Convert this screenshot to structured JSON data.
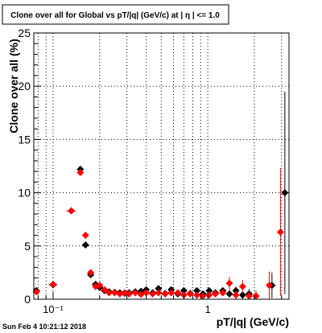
{
  "chart_data": {
    "type": "scatter",
    "title": "Clone  over all for Global vs pT/|q| (GeV/c) at |  η | <= 1.0",
    "xlabel": "pT/|q| (GeV/c)",
    "ylabel": "Clone  over all (%)",
    "footer": "Sun Feb  4 10:21:12 2018",
    "x_scale": "log",
    "xlim": [
      0.075,
      3.35
    ],
    "ylim": [
      0,
      25
    ],
    "grid": true,
    "y_ticks": [
      "0",
      "5",
      "10",
      "15",
      "20",
      "25"
    ],
    "x_ticks": [
      "10⁻¹",
      "1"
    ],
    "series": [
      {
        "color": "#000000",
        "marker": "diamond",
        "points": [
          {
            "x": 0.078,
            "y": 0.8,
            "xerr": 0.003,
            "yerr": 0.2
          },
          {
            "x": 0.1,
            "y": 1.35,
            "xerr": 0.006,
            "yerr": 0.25
          },
          {
            "x": 0.131,
            "y": 8.3,
            "xerr": 0.009,
            "yerr": 0.25
          },
          {
            "x": 0.15,
            "y": 12.2,
            "xerr": 0.003,
            "yerr": 0.25
          },
          {
            "x": 0.162,
            "y": 5.1,
            "xerr": 0.003,
            "yerr": 0.25
          },
          {
            "x": 0.175,
            "y": 2.3,
            "xerr": 0.003,
            "yerr": 0.2
          },
          {
            "x": 0.188,
            "y": 1.4,
            "xerr": 0.003,
            "yerr": 0.15
          },
          {
            "x": 0.2,
            "y": 1.1,
            "xerr": 0.003,
            "yerr": 0.15
          },
          {
            "x": 0.215,
            "y": 0.8,
            "xerr": 0.004,
            "yerr": 0.12
          },
          {
            "x": 0.23,
            "y": 0.7,
            "xerr": 0.004,
            "yerr": 0.12
          },
          {
            "x": 0.25,
            "y": 0.65,
            "xerr": 0.005,
            "yerr": 0.12
          },
          {
            "x": 0.27,
            "y": 0.6,
            "xerr": 0.005,
            "yerr": 0.12
          },
          {
            "x": 0.29,
            "y": 0.55,
            "xerr": 0.005,
            "yerr": 0.12
          },
          {
            "x": 0.31,
            "y": 0.6,
            "xerr": 0.006,
            "yerr": 0.12
          },
          {
            "x": 0.34,
            "y": 0.7,
            "xerr": 0.006,
            "yerr": 0.15
          },
          {
            "x": 0.37,
            "y": 0.75,
            "xerr": 0.007,
            "yerr": 0.15
          },
          {
            "x": 0.4,
            "y": 0.9,
            "xerr": 0.008,
            "yerr": 0.15
          },
          {
            "x": 0.44,
            "y": 0.6,
            "xerr": 0.009,
            "yerr": 0.15
          },
          {
            "x": 0.48,
            "y": 1.0,
            "xerr": 0.01,
            "yerr": 0.2
          },
          {
            "x": 0.53,
            "y": 0.55,
            "xerr": 0.01,
            "yerr": 0.2
          },
          {
            "x": 0.58,
            "y": 0.9,
            "xerr": 0.012,
            "yerr": 0.2
          },
          {
            "x": 0.64,
            "y": 0.5,
            "xerr": 0.013,
            "yerr": 0.2
          },
          {
            "x": 0.7,
            "y": 0.8,
            "xerr": 0.014,
            "yerr": 0.2
          },
          {
            "x": 0.77,
            "y": 0.55,
            "xerr": 0.015,
            "yerr": 0.2
          },
          {
            "x": 0.85,
            "y": 0.8,
            "xerr": 0.017,
            "yerr": 0.25
          },
          {
            "x": 0.93,
            "y": 0.5,
            "xerr": 0.02,
            "yerr": 0.25
          },
          {
            "x": 1.02,
            "y": 0.8,
            "xerr": 0.02,
            "yerr": 0.25
          },
          {
            "x": 1.12,
            "y": 0.6,
            "xerr": 0.025,
            "yerr": 0.3
          },
          {
            "x": 1.25,
            "y": 0.8,
            "xerr": 0.025,
            "yerr": 0.3
          },
          {
            "x": 1.38,
            "y": 0.5,
            "xerr": 0.03,
            "yerr": 0.35
          },
          {
            "x": 1.52,
            "y": 0.8,
            "xerr": 0.03,
            "yerr": 0.4
          },
          {
            "x": 1.68,
            "y": 0.4,
            "xerr": 0.035,
            "yerr": 0.4
          },
          {
            "x": 1.85,
            "y": 0.5,
            "xerr": 0.04,
            "yerr": 0.45
          },
          {
            "x": 2.05,
            "y": 0.3,
            "xerr": 0.045,
            "yerr": 0.5
          },
          {
            "x": 2.6,
            "y": 1.3,
            "xerr": 0.05,
            "yerr": 1.2
          },
          {
            "x": 3.15,
            "y": 10.0,
            "xerr": 0.05,
            "yerr": 9.5
          }
        ]
      },
      {
        "color": "#ff0000",
        "marker": "diamond",
        "points": [
          {
            "x": 0.078,
            "y": 0.7,
            "xerr": 0.003,
            "yerr": 0.2
          },
          {
            "x": 0.1,
            "y": 1.4,
            "xerr": 0.006,
            "yerr": 0.25
          },
          {
            "x": 0.131,
            "y": 8.3,
            "xerr": 0.009,
            "yerr": 0.25
          },
          {
            "x": 0.15,
            "y": 11.9,
            "xerr": 0.003,
            "yerr": 0.25
          },
          {
            "x": 0.162,
            "y": 6.0,
            "xerr": 0.003,
            "yerr": 0.25
          },
          {
            "x": 0.175,
            "y": 2.5,
            "xerr": 0.003,
            "yerr": 0.2
          },
          {
            "x": 0.188,
            "y": 1.2,
            "xerr": 0.003,
            "yerr": 0.15
          },
          {
            "x": 0.2,
            "y": 1.3,
            "xerr": 0.003,
            "yerr": 0.15
          },
          {
            "x": 0.215,
            "y": 0.9,
            "xerr": 0.004,
            "yerr": 0.12
          },
          {
            "x": 0.23,
            "y": 0.6,
            "xerr": 0.004,
            "yerr": 0.12
          },
          {
            "x": 0.25,
            "y": 0.6,
            "xerr": 0.005,
            "yerr": 0.12
          },
          {
            "x": 0.27,
            "y": 0.5,
            "xerr": 0.005,
            "yerr": 0.12
          },
          {
            "x": 0.29,
            "y": 0.6,
            "xerr": 0.005,
            "yerr": 0.12
          },
          {
            "x": 0.31,
            "y": 0.5,
            "xerr": 0.006,
            "yerr": 0.12
          },
          {
            "x": 0.34,
            "y": 0.6,
            "xerr": 0.006,
            "yerr": 0.15
          },
          {
            "x": 0.37,
            "y": 0.45,
            "xerr": 0.007,
            "yerr": 0.15
          },
          {
            "x": 0.4,
            "y": 0.6,
            "xerr": 0.008,
            "yerr": 0.15
          },
          {
            "x": 0.44,
            "y": 0.5,
            "xerr": 0.009,
            "yerr": 0.15
          },
          {
            "x": 0.48,
            "y": 0.6,
            "xerr": 0.01,
            "yerr": 0.2
          },
          {
            "x": 0.53,
            "y": 0.5,
            "xerr": 0.01,
            "yerr": 0.2
          },
          {
            "x": 0.58,
            "y": 0.6,
            "xerr": 0.012,
            "yerr": 0.2
          },
          {
            "x": 0.64,
            "y": 0.6,
            "xerr": 0.013,
            "yerr": 0.2
          },
          {
            "x": 0.7,
            "y": 0.4,
            "xerr": 0.014,
            "yerr": 0.2
          },
          {
            "x": 0.77,
            "y": 0.5,
            "xerr": 0.015,
            "yerr": 0.2
          },
          {
            "x": 0.85,
            "y": 0.4,
            "xerr": 0.017,
            "yerr": 0.25
          },
          {
            "x": 0.93,
            "y": 0.3,
            "xerr": 0.02,
            "yerr": 0.25
          },
          {
            "x": 1.02,
            "y": 0.4,
            "xerr": 0.02,
            "yerr": 0.25
          },
          {
            "x": 1.12,
            "y": 0.5,
            "xerr": 0.025,
            "yerr": 0.3
          },
          {
            "x": 1.25,
            "y": 0.6,
            "xerr": 0.025,
            "yerr": 0.3
          },
          {
            "x": 1.38,
            "y": 1.5,
            "xerr": 0.03,
            "yerr": 0.6
          },
          {
            "x": 1.52,
            "y": 0.4,
            "xerr": 0.03,
            "yerr": 0.4
          },
          {
            "x": 1.68,
            "y": 1.2,
            "xerr": 0.035,
            "yerr": 0.6
          },
          {
            "x": 1.85,
            "y": 0.3,
            "xerr": 0.04,
            "yerr": 0.45
          },
          {
            "x": 2.05,
            "y": 0.3,
            "xerr": 0.045,
            "yerr": 0.5
          },
          {
            "x": 2.5,
            "y": 1.3,
            "xerr": 0.05,
            "yerr": 1.3
          },
          {
            "x": 2.95,
            "y": 6.3,
            "xerr": 0.05,
            "yerr": 6.0
          }
        ]
      }
    ]
  }
}
